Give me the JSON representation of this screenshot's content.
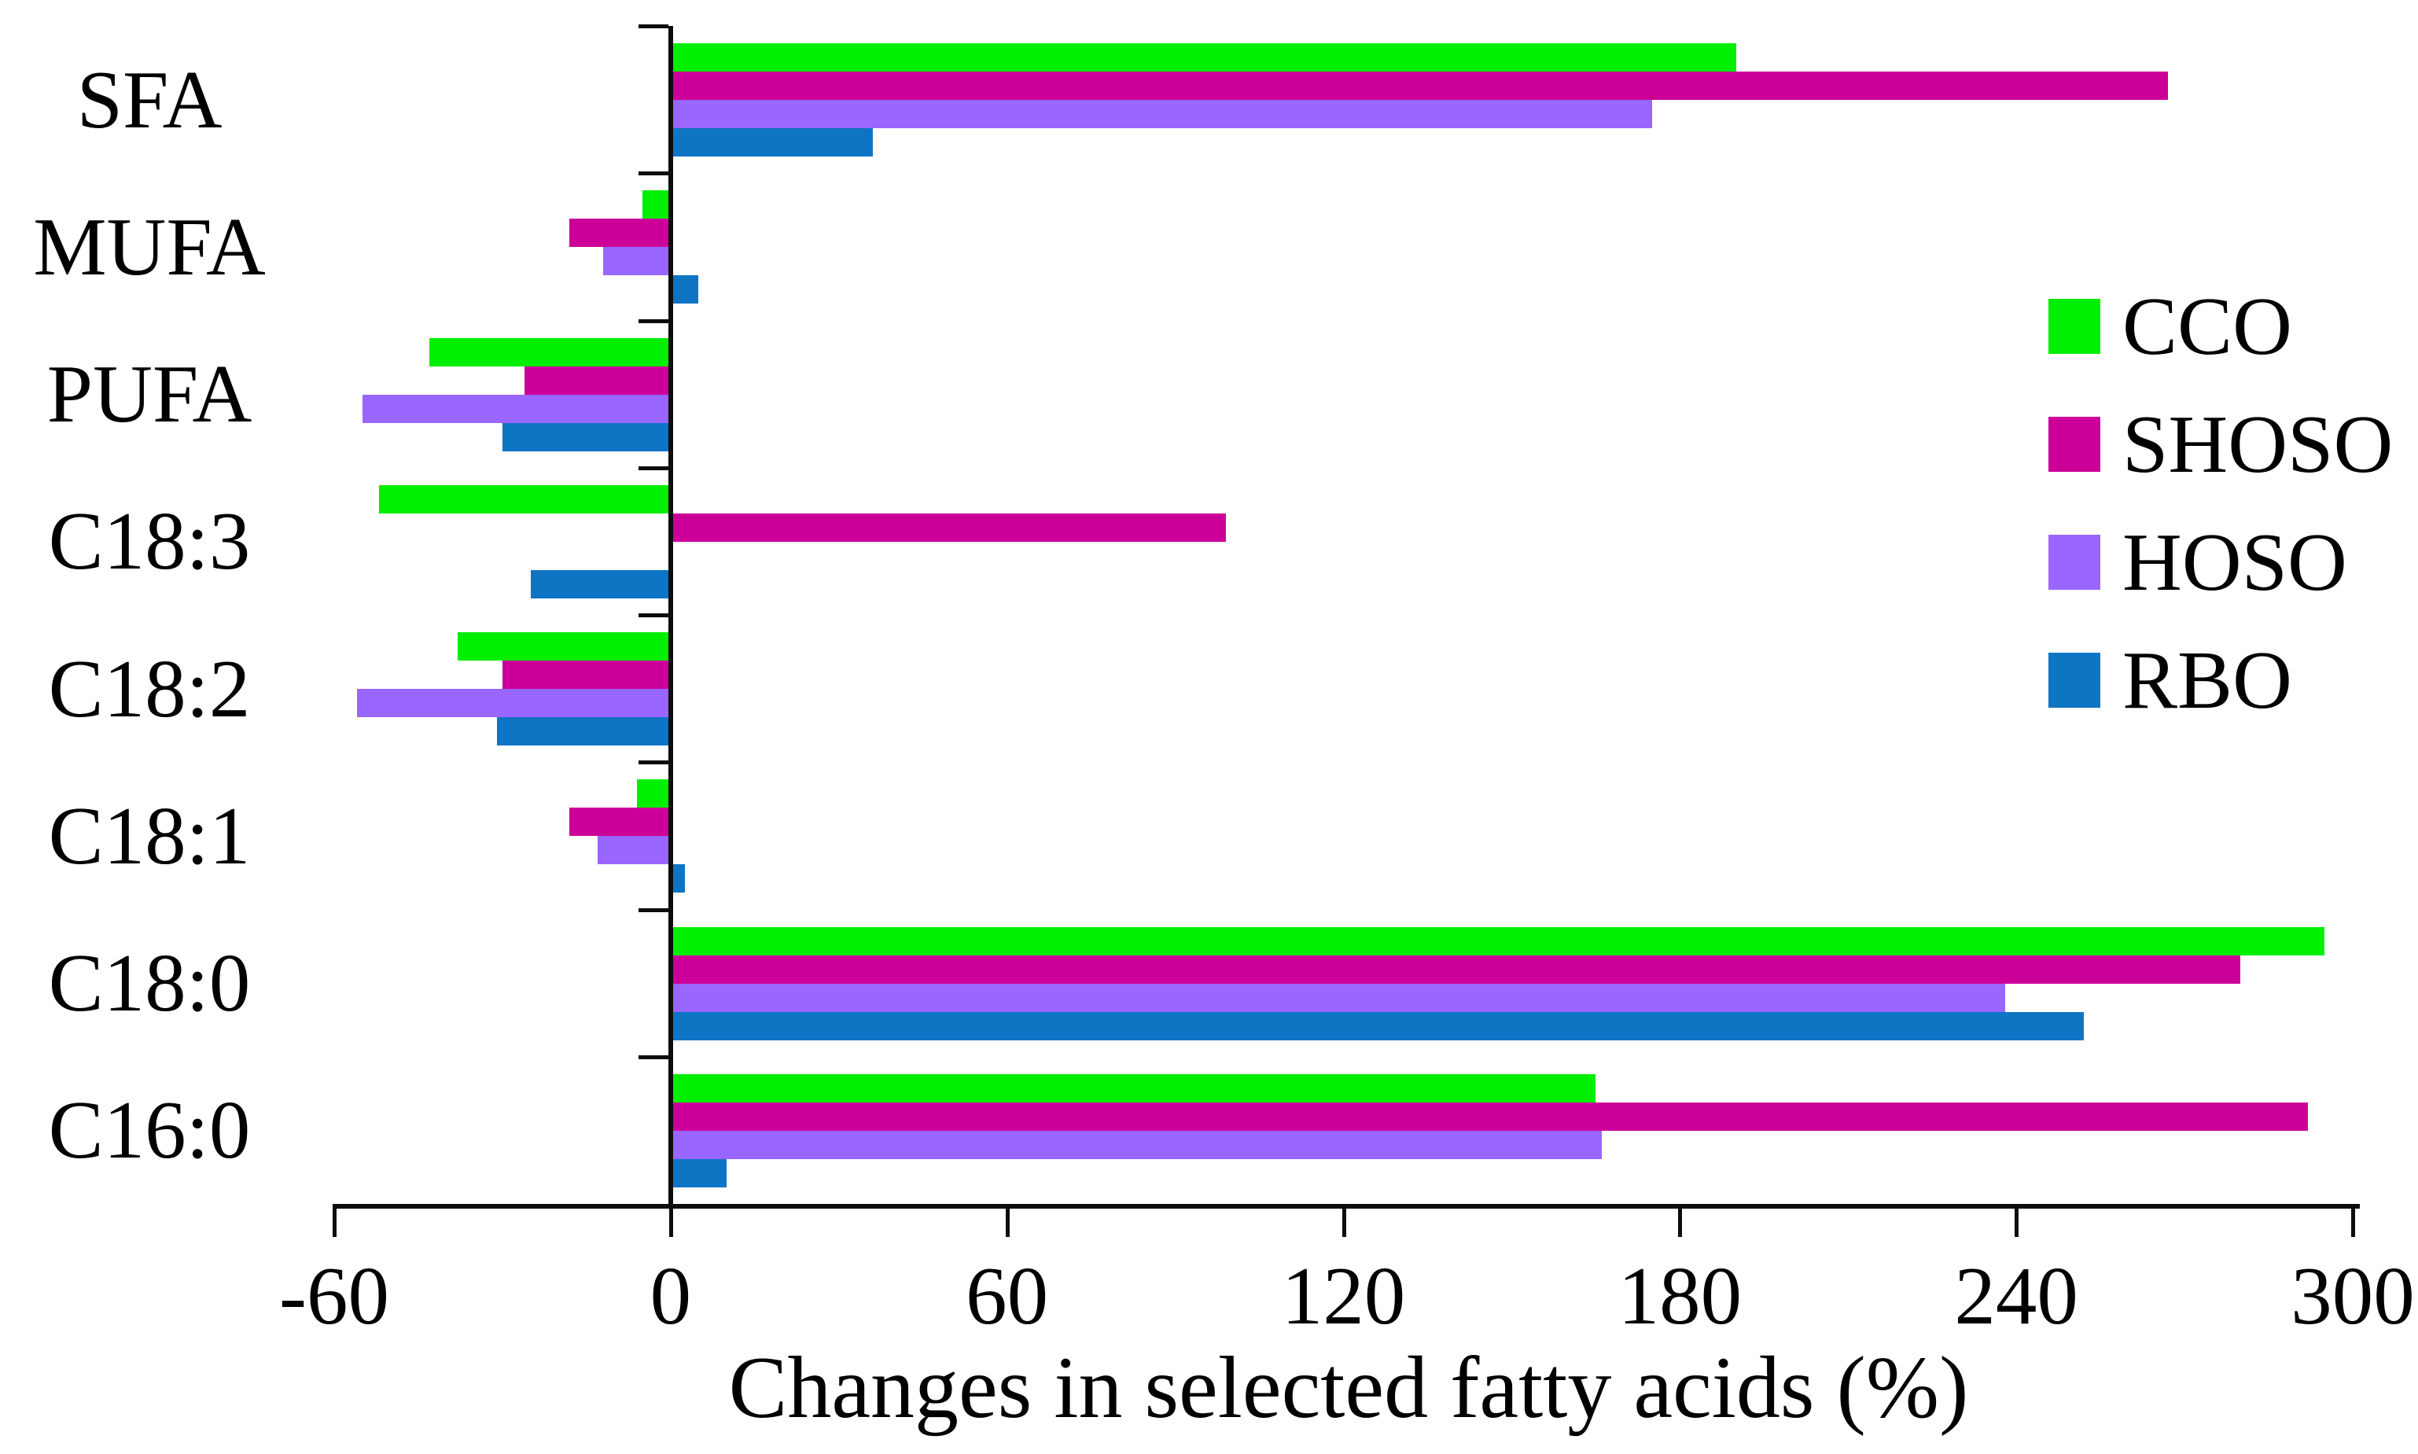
{
  "chart_data": {
    "type": "bar",
    "orientation": "horizontal",
    "title": "",
    "xlabel": "Changes in selected fatty acids (%)",
    "ylabel": "",
    "xlim": [
      -60,
      300
    ],
    "xticks": [
      -60,
      0,
      60,
      120,
      180,
      240,
      300
    ],
    "grid": false,
    "legend_position": "right-center",
    "categories_top_to_bottom": [
      "SFA",
      "MUFA",
      "PUFA",
      "C18:3",
      "C18:2",
      "C18:1",
      "C18:0",
      "C16:0"
    ],
    "categories": [
      "SFA",
      "MUFA",
      "PUFA",
      "C18:3",
      "C18:2",
      "C18:1",
      "C18:0",
      "C16:0"
    ],
    "series": [
      {
        "name": "CCO",
        "color": "#00ee00",
        "values": [
          190,
          -5,
          -43,
          -52,
          -38,
          -6,
          295,
          165
        ]
      },
      {
        "name": "SHOSO",
        "color": "#cc0099",
        "values": [
          267,
          -18,
          -26,
          99,
          -30,
          -18,
          280,
          292
        ]
      },
      {
        "name": "HOSO",
        "color": "#9966ff",
        "values": [
          175,
          -12,
          -55,
          0,
          -56,
          -13,
          238,
          166
        ]
      },
      {
        "name": "RBO",
        "color": "#0e74c4",
        "values": [
          36,
          5,
          -30,
          -25,
          -31,
          2.5,
          252,
          10
        ]
      }
    ]
  },
  "colors": {
    "axis": "#0d0d0d",
    "background": "#ffffff",
    "cco_green": "#00ee00",
    "shoso_magenta": "#cc0099",
    "hoso_purple": "#9966ff",
    "rbo_blue": "#0e74c4"
  }
}
